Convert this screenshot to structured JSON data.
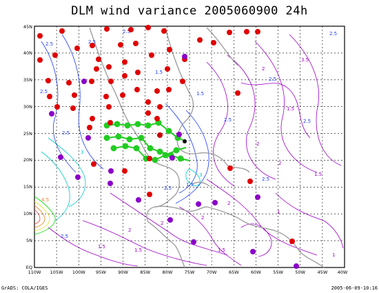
{
  "title": "DLM wind variance 2005060900 24h",
  "footer": {
    "left": "GrADS: COLA/IGES",
    "right": "2005-06-09-10:16"
  },
  "axes": {
    "lon_labels": [
      "110W",
      "105W",
      "100W",
      "95W",
      "90W",
      "85W",
      "80W",
      "75W",
      "70W",
      "65W",
      "60W",
      "55W",
      "50W",
      "45W",
      "40W"
    ],
    "lat_labels": [
      "EQ",
      "5N",
      "10N",
      "15N",
      "20N",
      "25N",
      "30N",
      "35N",
      "40N",
      "45N"
    ]
  },
  "contour_labels": [
    "1",
    "1.5",
    "2",
    "2.5",
    "3",
    "3.5",
    "4",
    "4.5",
    "5"
  ],
  "colors": {
    "contour_low": "#a000c8",
    "contour_mid": "#1e3cff",
    "contour_high_1": "#00c8c8",
    "contour_high_2": "#00dc00",
    "contour_high_3": "#e6dc32",
    "contour_high_4": "#f08228",
    "contour_high_5": "#fa3c3c",
    "coast": "#a0a0a0",
    "grid": "#000000",
    "obs_red": "#e00000",
    "obs_purple": "#8a00c8",
    "track_green": "#22cc22"
  },
  "map_region": {
    "lon_range": [
      -110,
      -40
    ],
    "lat_range": [
      0,
      45
    ]
  }
}
